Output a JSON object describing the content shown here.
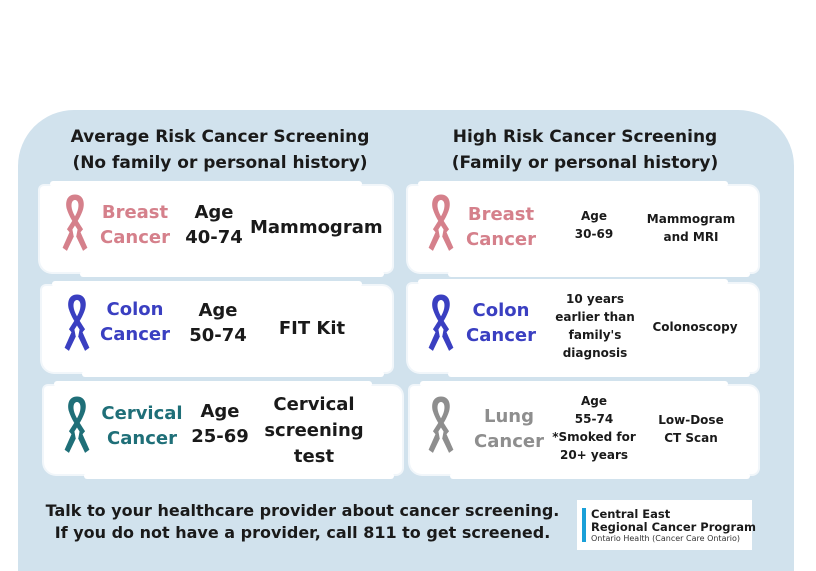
{
  "colors": {
    "panel": "#d1e2ed",
    "breast": "#d5808b",
    "colon": "#3a3fc1",
    "cervical": "#1f6f78",
    "lung": "#8e8e8e"
  },
  "average": {
    "heading_line1": "Average Risk Cancer Screening",
    "heading_line2": "(No family or personal history)",
    "rows": [
      {
        "name1": "Breast",
        "name2": "Cancer",
        "age1": "Age",
        "age2": "40-74",
        "test1": "Mammogram"
      },
      {
        "name1": "Colon",
        "name2": "Cancer",
        "age1": "Age",
        "age2": "50-74",
        "test1": "FIT Kit"
      },
      {
        "name1": "Cervical",
        "name2": "Cancer",
        "age1": "Age",
        "age2": "25-69",
        "test1": "Cervical",
        "test2": "screening",
        "test3": "test"
      }
    ]
  },
  "high": {
    "heading_line1": "High Risk Cancer Screening",
    "heading_line2": "(Family or personal history)",
    "rows": [
      {
        "name1": "Breast",
        "name2": "Cancer",
        "age1": "Age",
        "age2": "30-69",
        "test1": "Mammogram",
        "test2": "and MRI"
      },
      {
        "name1": "Colon",
        "name2": "Cancer",
        "age1": "10 years",
        "age2": "earlier than",
        "age3": "family's",
        "age4": "diagnosis",
        "test1": "Colonoscopy"
      },
      {
        "name1": "Lung",
        "name2": "Cancer",
        "age1": "Age",
        "age2": "55-74",
        "age3": "*Smoked for",
        "age4": "20+ years",
        "test1": "Low-Dose",
        "test2": "CT Scan"
      }
    ]
  },
  "footer": {
    "line1": "Talk to your healthcare provider about cancer screening.",
    "line2": "If you do not have a provider, call 811 to get screened."
  },
  "logo": {
    "line1": "Central East",
    "line2": "Regional Cancer Program",
    "line3": "Ontario Health (Cancer Care Ontario)"
  },
  "icons": [
    "ribbon-icon"
  ]
}
